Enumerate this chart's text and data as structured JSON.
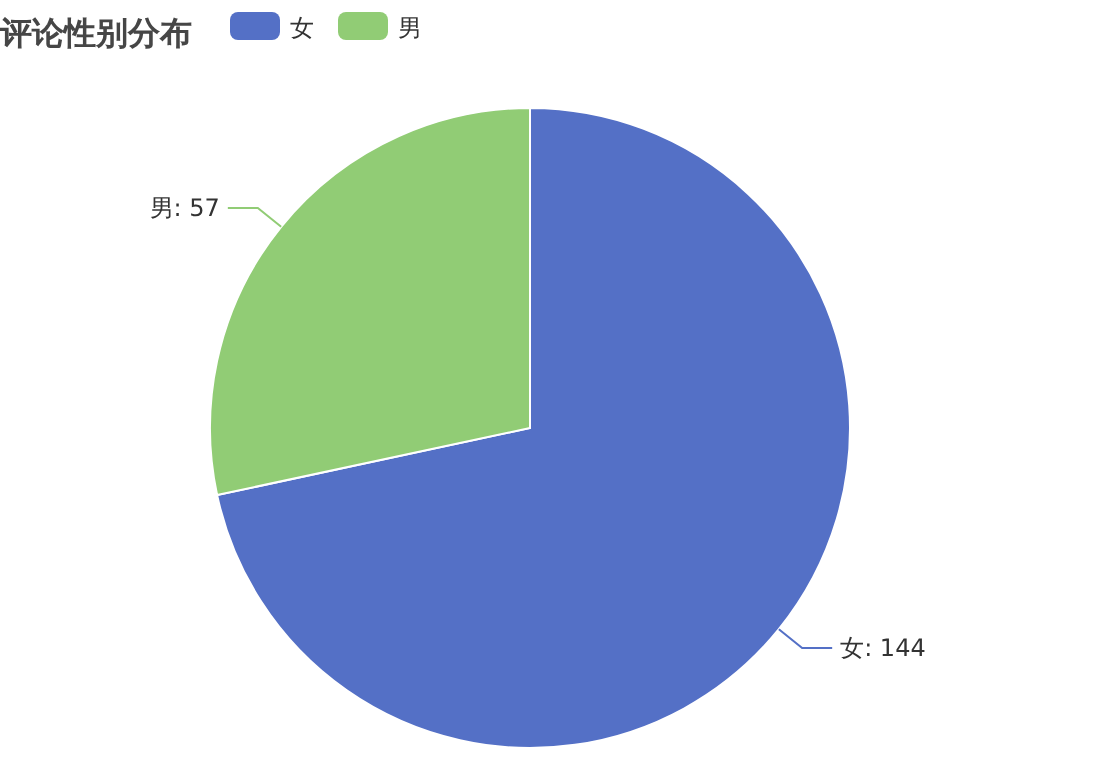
{
  "chart_data": {
    "type": "pie",
    "title": "评论性别分布",
    "categories": [
      "女",
      "男"
    ],
    "values": [
      144,
      57
    ],
    "value_labels": [
      "女: 144",
      "男: 57"
    ],
    "colors": [
      "#5470c6",
      "#91cc75"
    ],
    "legend": "top"
  }
}
